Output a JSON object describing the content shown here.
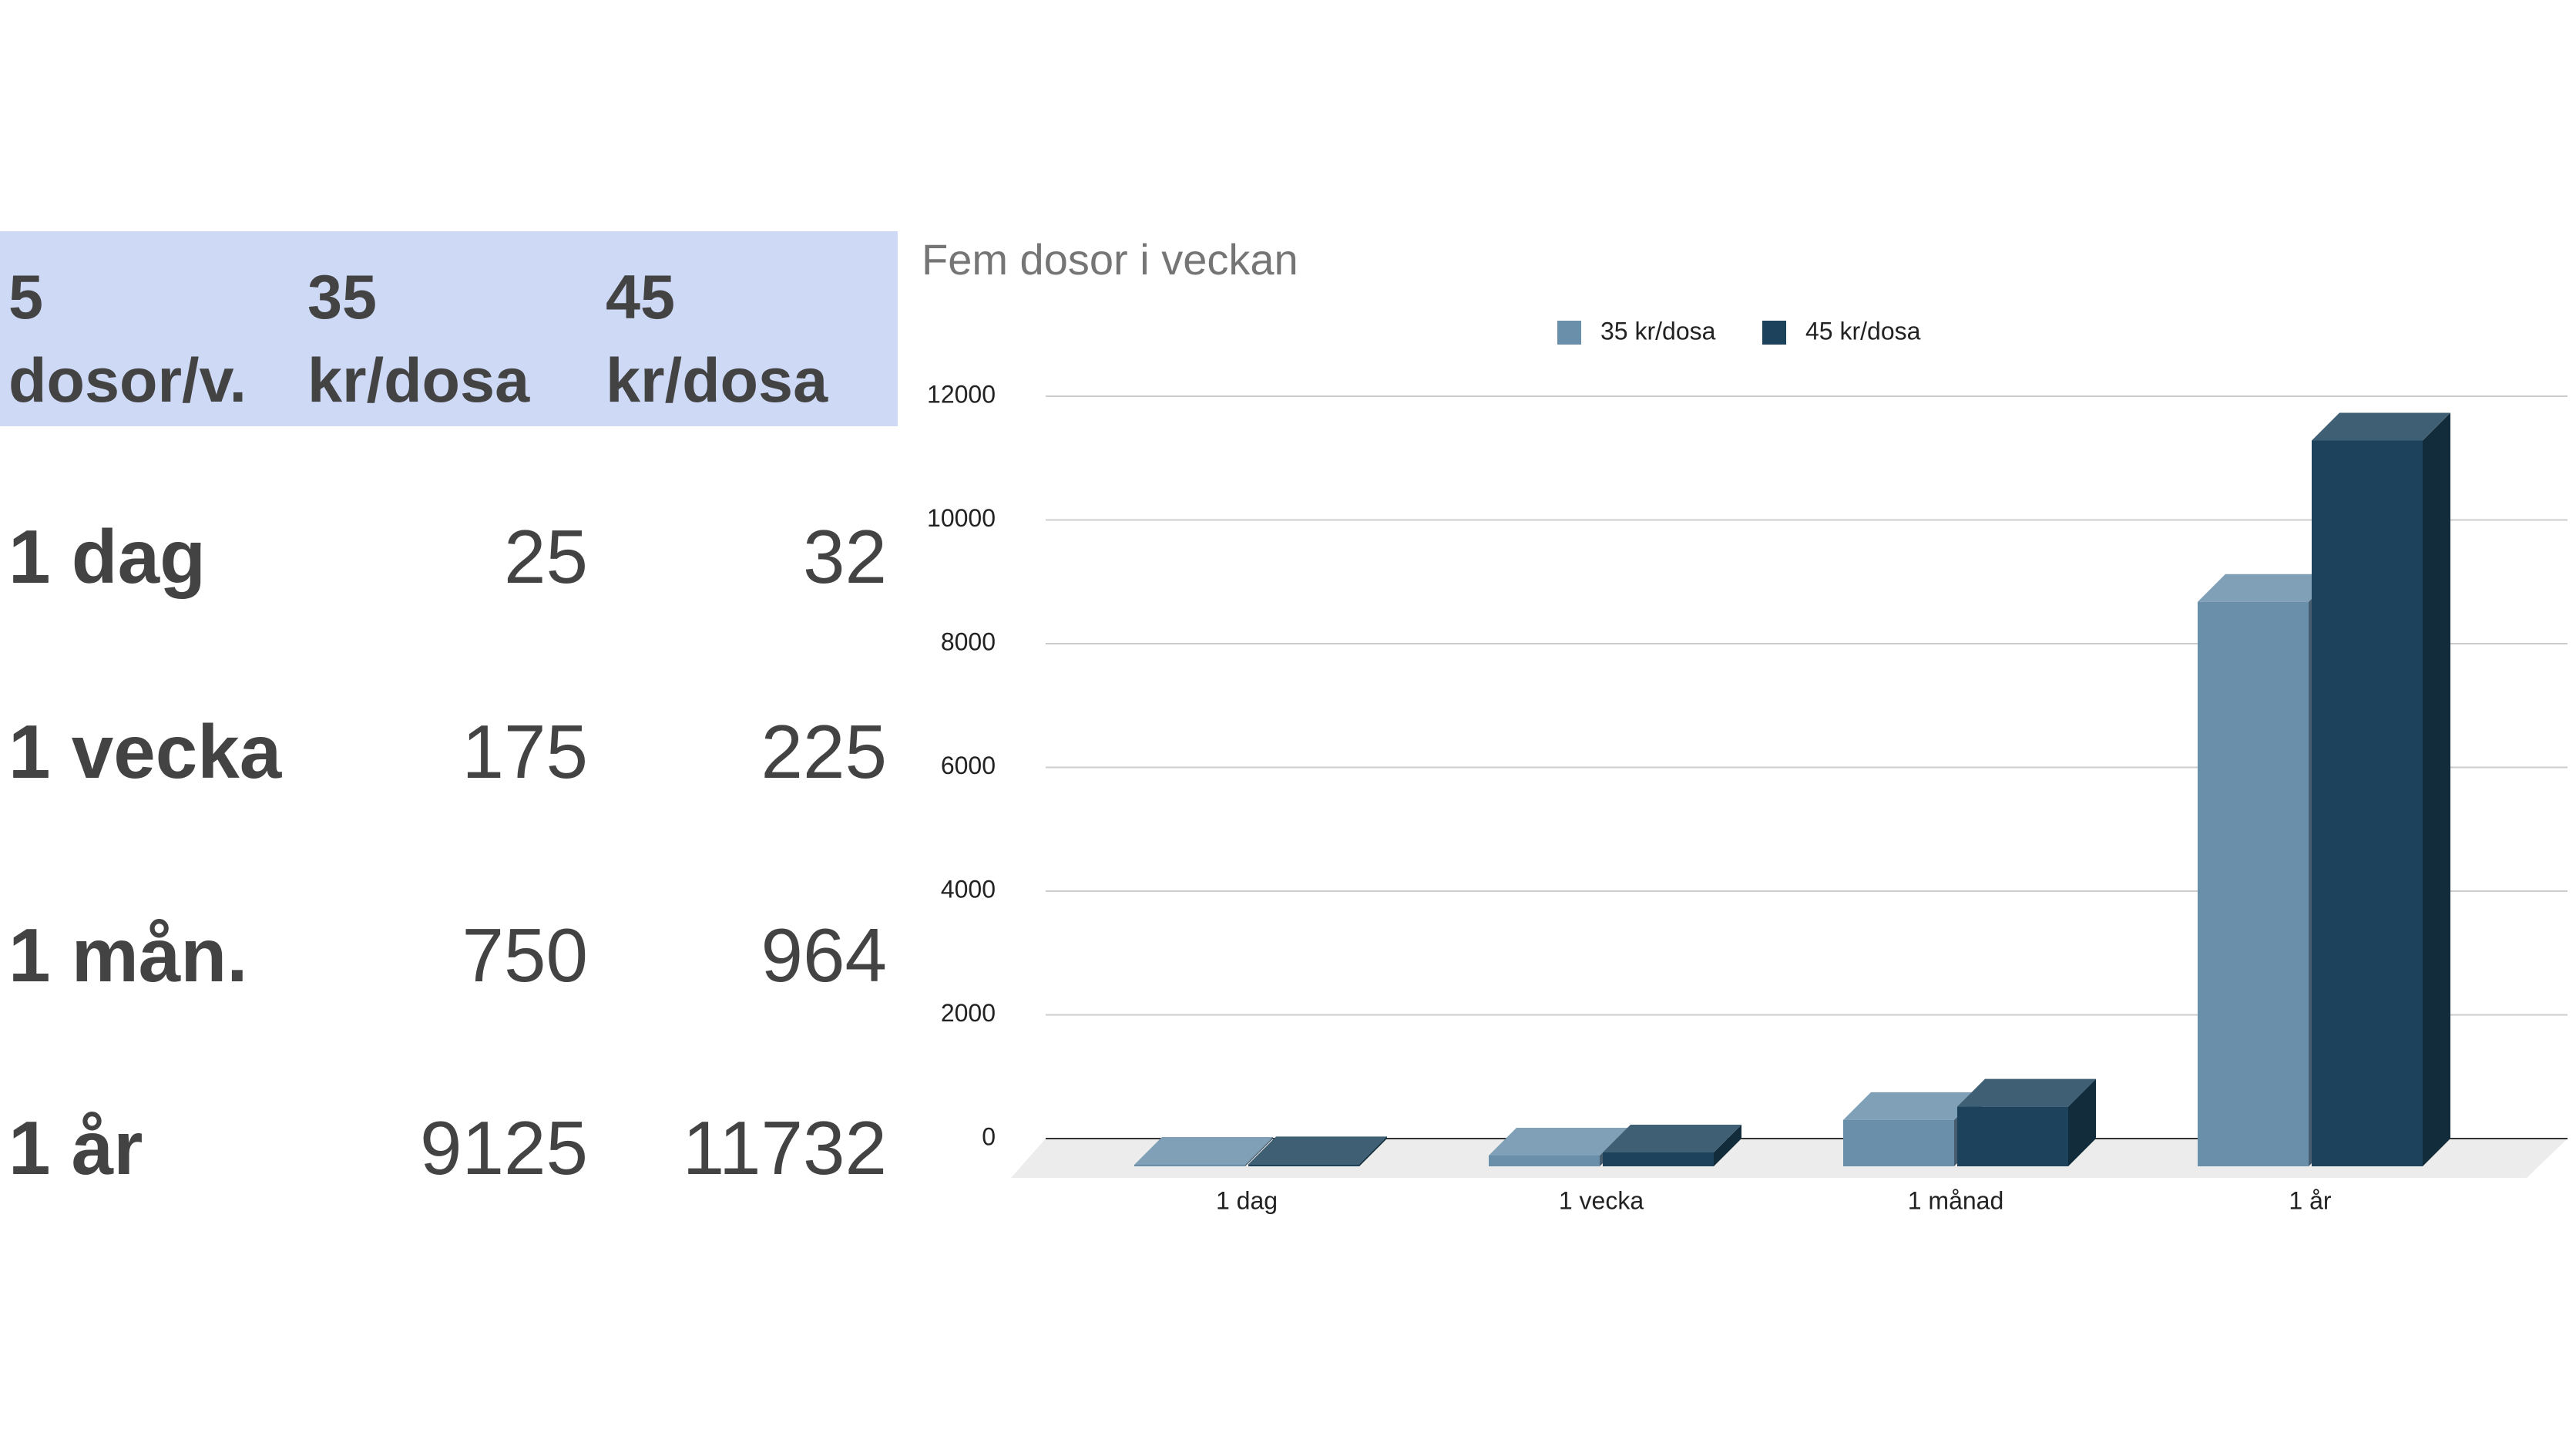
{
  "table": {
    "header": [
      "5 dosor/v.",
      "35 kr/dosa",
      "45 kr/dosa"
    ],
    "rows": [
      [
        "1 dag",
        25,
        32
      ],
      [
        "1 vecka",
        175,
        225
      ],
      [
        "1 mån.",
        750,
        964
      ],
      [
        "1 år",
        9125,
        11732
      ]
    ]
  },
  "chart_data": {
    "type": "bar3d",
    "title": "Fem dosor i veckan",
    "categories": [
      "1 dag",
      "1 vecka",
      "1 månad",
      "1 år"
    ],
    "series": [
      {
        "name": "35 kr/dosa",
        "color": "#6a8fab",
        "values": [
          25,
          175,
          750,
          9125
        ]
      },
      {
        "name": "45 kr/dosa",
        "color": "#1d435c",
        "values": [
          32,
          225,
          964,
          11732
        ]
      }
    ],
    "ylim": [
      0,
      12000
    ],
    "yticks": [
      0,
      2000,
      4000,
      6000,
      8000,
      10000,
      12000
    ],
    "grid": true,
    "legend": "top"
  }
}
